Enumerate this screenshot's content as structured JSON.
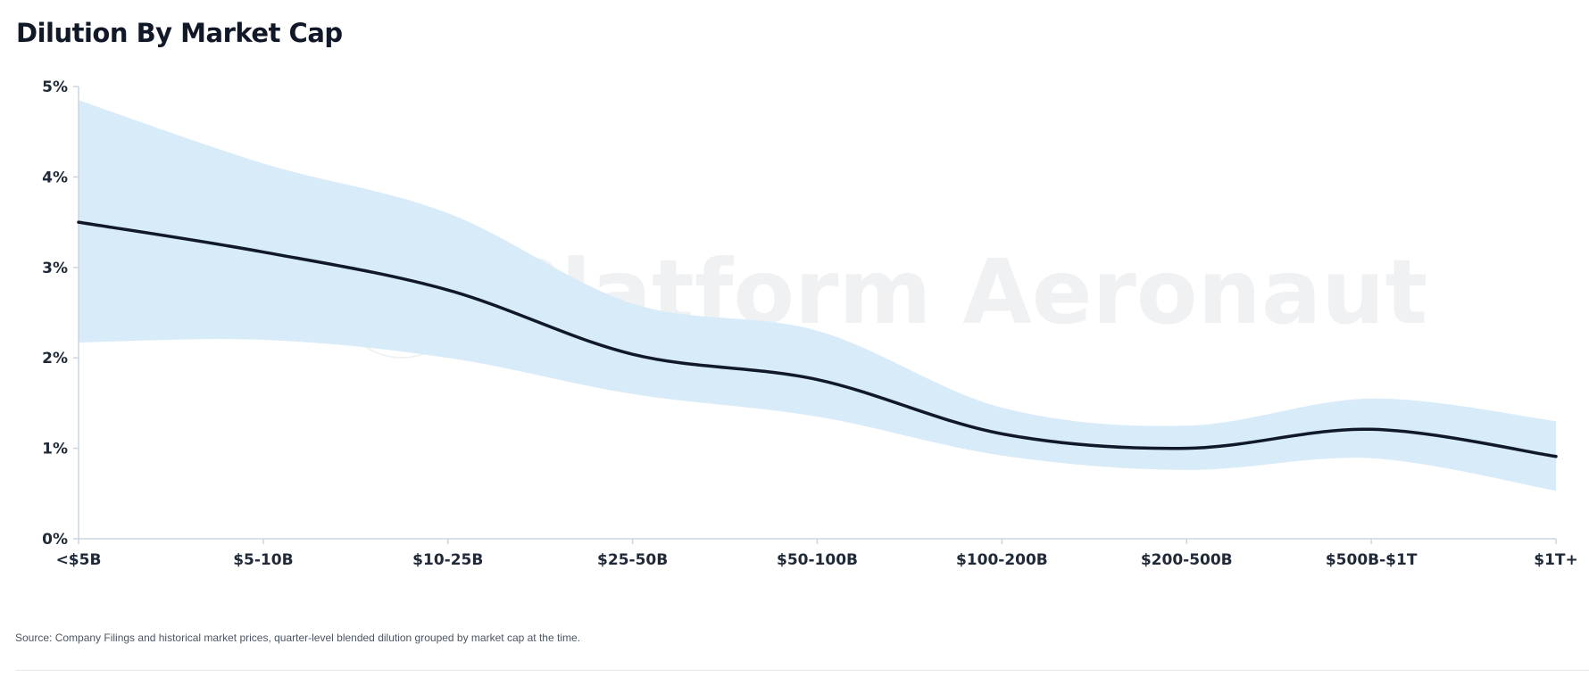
{
  "chart_data": {
    "type": "line",
    "title": "Dilution By Market Cap",
    "xlabel": "",
    "ylabel": "",
    "categories": [
      "<$5B",
      "$5-10B",
      "$10-25B",
      "$25-50B",
      "$50-100B",
      "$100-200B",
      "$200-500B",
      "$500B-$1T",
      "$1T+"
    ],
    "series": [
      {
        "type": "line",
        "values": [
          3.5,
          3.17,
          2.75,
          2.04,
          1.76,
          1.16,
          1.0,
          1.21,
          0.91
        ]
      }
    ],
    "band": {
      "upper": [
        4.85,
        4.15,
        3.6,
        2.6,
        2.3,
        1.45,
        1.25,
        1.55,
        1.3
      ],
      "lower": [
        2.17,
        2.2,
        2.0,
        1.6,
        1.35,
        0.92,
        0.76,
        0.89,
        0.53
      ]
    },
    "ylim": [
      0,
      5
    ],
    "yticks": [
      {
        "value": 0,
        "label": "0%"
      },
      {
        "value": 1,
        "label": "1%"
      },
      {
        "value": 2,
        "label": "2%"
      },
      {
        "value": 3,
        "label": "3%"
      },
      {
        "value": 4,
        "label": "4%"
      },
      {
        "value": 5,
        "label": "5%"
      }
    ],
    "grid": false,
    "legend": "none"
  },
  "watermark": {
    "text": "Platform Aeronaut",
    "icon": "paper-plane-icon"
  },
  "source_note": "Source: Company Filings and historical market prices, quarter-level blended dilution grouped by market cap at the time.",
  "colors": {
    "band": "#d6eaf8",
    "line": "#111827",
    "axis": "#cbd5e1",
    "watermark": "#e5e7eb"
  }
}
